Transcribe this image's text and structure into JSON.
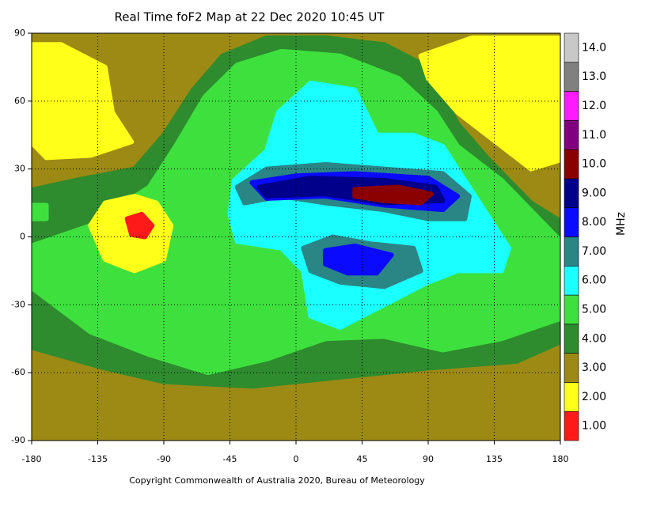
{
  "chart_data": {
    "type": "contour-map",
    "title": "Real Time foF2 Map at 22 Dec 2020 10:45 UT",
    "footer": "Copyright Commonwealth of Australia 2020, Bureau of Meteorology",
    "xlim": [
      -180,
      180
    ],
    "xticks": [
      -180,
      -135,
      -90,
      -45,
      0,
      45,
      90,
      135,
      180
    ],
    "ylim": [
      -90,
      90
    ],
    "yticks": [
      90,
      60,
      30,
      0,
      -30,
      -60,
      -90
    ],
    "grid": true,
    "colorbar": {
      "label": "MHz",
      "ticks": [
        {
          "value": 1,
          "label": "1.00"
        },
        {
          "value": 2,
          "label": "2.00"
        },
        {
          "value": 3,
          "label": "3.00"
        },
        {
          "value": 4,
          "label": "4.00"
        },
        {
          "value": 5,
          "label": "5.00"
        },
        {
          "value": 6,
          "label": "6.00"
        },
        {
          "value": 7,
          "label": "7.00"
        },
        {
          "value": 8,
          "label": "8.00"
        },
        {
          "value": 9,
          "label": "9.00"
        },
        {
          "value": 10,
          "label": "10.0"
        },
        {
          "value": 11,
          "label": "11.0"
        },
        {
          "value": 12,
          "label": "12.0"
        },
        {
          "value": 13,
          "label": "13.0"
        },
        {
          "value": 14,
          "label": "14.0"
        }
      ],
      "colors": [
        "#ff1a1a",
        "#ffff1a",
        "#9c8a14",
        "#2e8b2e",
        "#3ee03e",
        "#1affff",
        "#2a8585",
        "#0a0aff",
        "#00008b",
        "#8b0000",
        "#800080",
        "#ff1aff",
        "#808080",
        "#c8c8c8"
      ]
    }
  }
}
